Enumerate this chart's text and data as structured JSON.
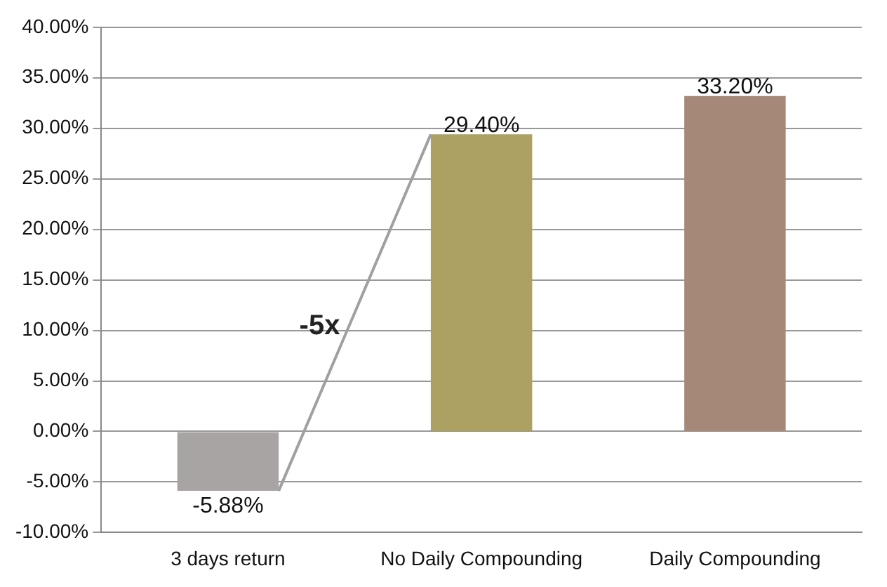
{
  "chart_data": {
    "type": "bar",
    "categories": [
      "3 days return",
      "No Daily Compounding",
      "Daily Compounding"
    ],
    "values": [
      -5.88,
      29.4,
      33.2
    ],
    "colors": [
      "#a8a4a4",
      "#aca062",
      "#a68878"
    ],
    "value_labels": [
      "-5.88%",
      "29.40%",
      "33.20%"
    ],
    "ylim": [
      -10,
      40
    ],
    "yticks": [
      {
        "value": -10,
        "label": "-10.00%"
      },
      {
        "value": -5,
        "label": "-5.00%"
      },
      {
        "value": 0,
        "label": "0.00%"
      },
      {
        "value": 5,
        "label": "5.00%"
      },
      {
        "value": 10,
        "label": "10.00%"
      },
      {
        "value": 15,
        "label": "15.00%"
      },
      {
        "value": 20,
        "label": "20.00%"
      },
      {
        "value": 25,
        "label": "25.00%"
      },
      {
        "value": 30,
        "label": "30.00%"
      },
      {
        "value": 35,
        "label": "35.00%"
      },
      {
        "value": 40,
        "label": "40.00%"
      }
    ],
    "grid": "y",
    "legend": false,
    "annotations": [
      "-5x"
    ]
  }
}
